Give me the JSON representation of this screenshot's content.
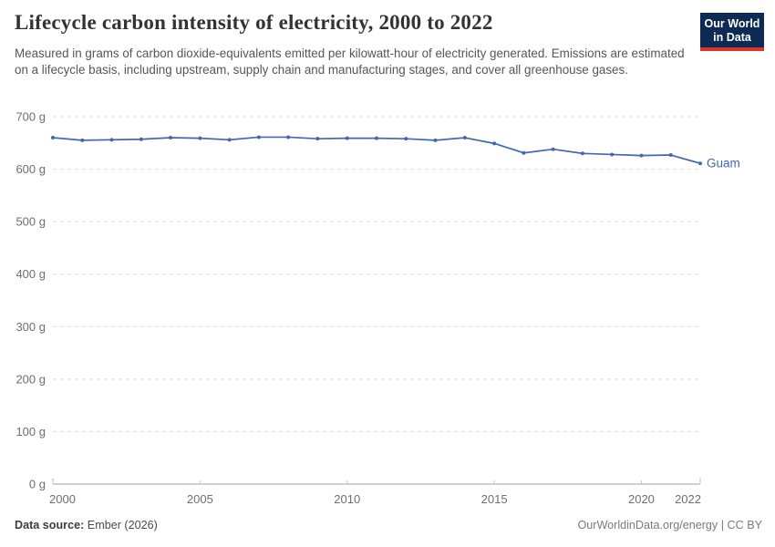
{
  "header": {
    "title": "Lifecycle carbon intensity of electricity, 2000 to 2022",
    "subtitle": "Measured in grams of carbon dioxide-equivalents emitted per kilowatt-hour of electricity generated. Emissions are estimated on a lifecycle basis, including upstream, supply chain and manufacturing stages, and cover all greenhouse gases.",
    "logo": {
      "line1": "Our World",
      "line2": "in Data"
    }
  },
  "chart_data": {
    "type": "line",
    "title": "Lifecycle carbon intensity of electricity, 2000 to 2022",
    "x": [
      2000,
      2001,
      2002,
      2003,
      2004,
      2005,
      2006,
      2007,
      2008,
      2009,
      2010,
      2011,
      2012,
      2013,
      2014,
      2015,
      2016,
      2017,
      2018,
      2019,
      2020,
      2021,
      2022
    ],
    "series": [
      {
        "name": "Guam",
        "color": "#4268ae",
        "values": [
          660,
          655,
          656,
          657,
          660,
          659,
          656,
          661,
          661,
          658,
          659,
          659,
          658,
          655,
          660,
          649,
          631,
          638,
          630,
          628,
          626,
          627,
          611
        ]
      }
    ],
    "xlabel": "",
    "ylabel": "",
    "xlim": [
      2000,
      2022
    ],
    "ylim": [
      0,
      700
    ],
    "x_ticks": [
      2000,
      2005,
      2010,
      2015,
      2020,
      2022
    ],
    "y_ticks": [
      0,
      100,
      200,
      300,
      400,
      500,
      600,
      700
    ],
    "y_tick_suffix": " g",
    "grid": "horizontal-dashed",
    "legend": "series-end-label"
  },
  "footer": {
    "source_label": "Data source:",
    "source_value": "Ember (2026)",
    "credit": "OurWorldinData.org/energy | CC BY"
  },
  "colors": {
    "accent_blue": "#4268ae",
    "logo_navy": "#0d2a52",
    "logo_red": "#d9382e",
    "gridline": "#dddddd",
    "axis": "#a5a5a5",
    "tick_mark": "#c8c8c8",
    "tick_text": "#6e6e6e"
  }
}
